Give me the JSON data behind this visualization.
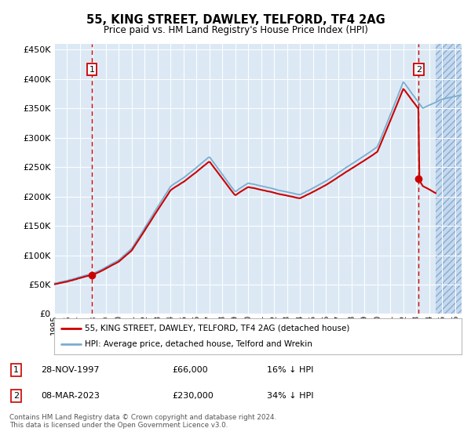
{
  "title1": "55, KING STREET, DAWLEY, TELFORD, TF4 2AG",
  "title2": "Price paid vs. HM Land Registry's House Price Index (HPI)",
  "legend1": "55, KING STREET, DAWLEY, TELFORD, TF4 2AG (detached house)",
  "legend2": "HPI: Average price, detached house, Telford and Wrekin",
  "annotation1_label": "1",
  "annotation1_date": "28-NOV-1997",
  "annotation1_price": "£66,000",
  "annotation1_hpi": "16% ↓ HPI",
  "annotation2_label": "2",
  "annotation2_date": "08-MAR-2023",
  "annotation2_price": "£230,000",
  "annotation2_hpi": "34% ↓ HPI",
  "footer": "Contains HM Land Registry data © Crown copyright and database right 2024.\nThis data is licensed under the Open Government Licence v3.0.",
  "sale1_year": 1997.91,
  "sale1_price": 66000,
  "sale2_year": 2023.18,
  "sale2_price": 230000,
  "hatch_start": 2024.5,
  "xmin": 1995,
  "xmax": 2026.5,
  "ymin": 0,
  "ymax": 460000,
  "yticks": [
    0,
    50000,
    100000,
    150000,
    200000,
    250000,
    300000,
    350000,
    400000,
    450000
  ],
  "background_color": "#dce9f5",
  "grid_color": "#ffffff",
  "red_line_color": "#cc0000",
  "blue_line_color": "#7aadcf",
  "hatch_bg": "#c5d9ee"
}
